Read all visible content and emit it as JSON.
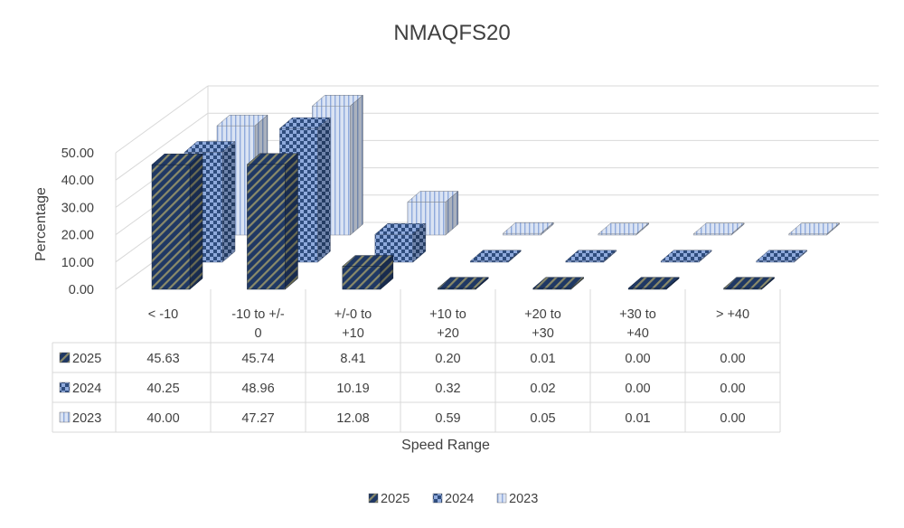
{
  "chart_data": {
    "type": "bar",
    "title": "NMAQFS20",
    "xlabel": "Speed Range",
    "ylabel": "Percentage",
    "ylim": [
      0,
      50
    ],
    "yticks": [
      "0.00",
      "10.00",
      "20.00",
      "30.00",
      "40.00",
      "50.00"
    ],
    "grid": true,
    "legend": "bottom",
    "categories": [
      [
        "< -10"
      ],
      [
        "-10 to +/-",
        "0"
      ],
      [
        "+/-0 to",
        "+10"
      ],
      [
        "+10 to",
        "+20"
      ],
      [
        "+20 to",
        "+30"
      ],
      [
        "+30 to",
        "+40"
      ],
      [
        "> +40"
      ]
    ],
    "series": [
      {
        "name": "2025",
        "values": [
          45.63,
          45.74,
          8.41,
          0.2,
          0.01,
          0.0,
          0.0
        ],
        "labels": [
          "45.63",
          "45.74",
          "8.41",
          "0.20",
          "0.01",
          "0.00",
          "0.00"
        ]
      },
      {
        "name": "2024",
        "values": [
          40.25,
          48.96,
          10.19,
          0.32,
          0.02,
          0.0,
          0.0
        ],
        "labels": [
          "40.25",
          "48.96",
          "10.19",
          "0.32",
          "0.02",
          "0.00",
          "0.00"
        ]
      },
      {
        "name": "2023",
        "values": [
          40.0,
          47.27,
          12.08,
          0.59,
          0.05,
          0.01,
          0.0
        ],
        "labels": [
          "40.00",
          "47.27",
          "12.08",
          "0.59",
          "0.05",
          "0.01",
          "0.00"
        ]
      }
    ],
    "colors": {
      "2025": {
        "base": "#1f3864",
        "pattern": "#8a8a6a"
      },
      "2024": {
        "base": "#8faadc",
        "pattern": "#2f4d7e"
      },
      "2023": {
        "base": "#dae3f3",
        "pattern": "#8faadc"
      }
    },
    "gridline_color": "#d9d9d9"
  }
}
